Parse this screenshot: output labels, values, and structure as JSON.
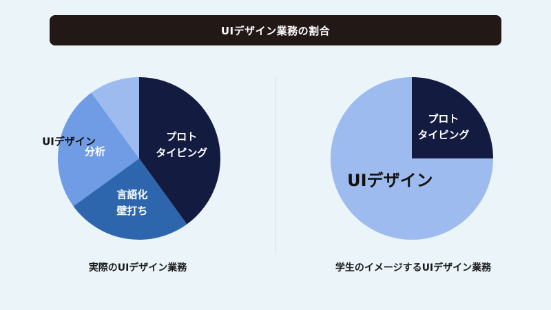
{
  "header": {
    "title": "UIデザイン業務の割合"
  },
  "colors": {
    "background": "#eaf4f9",
    "title_bar": "#221816",
    "navy": "#141b40",
    "light_blue": "#9dbbee",
    "medium_blue": "#6f9ce4",
    "deep_blue": "#2e66ad"
  },
  "chart_data": [
    {
      "type": "pie",
      "title": "実際のUIデザイン業務",
      "slices": [
        {
          "label": [
            "プロト",
            "タイピング"
          ],
          "value": 40,
          "color": "#141b40",
          "label_color": "#ffffff"
        },
        {
          "label": [
            "言語化",
            "壁打ち"
          ],
          "value": 25,
          "color": "#2e66ad",
          "label_color": "#ffffff"
        },
        {
          "label": [
            "分析"
          ],
          "value": 25,
          "color": "#6f9ce4",
          "label_color": "#ffffff"
        },
        {
          "label": [
            "UIデザイン"
          ],
          "value": 10,
          "color": "#9dbbee",
          "label_color": "#111111",
          "label_outside": true
        }
      ]
    },
    {
      "type": "pie",
      "title": "学生のイメージするUIデザイン業務",
      "slices": [
        {
          "label": [
            "プロト",
            "タイピング"
          ],
          "value": 25,
          "color": "#141b40",
          "label_color": "#ffffff"
        },
        {
          "label": [
            "UIデザイン"
          ],
          "value": 75,
          "color": "#9dbbee",
          "label_color": "#111111"
        }
      ]
    }
  ]
}
